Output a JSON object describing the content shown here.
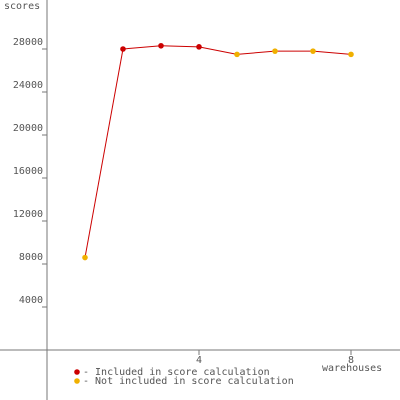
{
  "chart_data": {
    "type": "line",
    "y_label": "scores",
    "x_label": "warehouses",
    "x": [
      1,
      2,
      3,
      4,
      5,
      6,
      7,
      8
    ],
    "series": [
      {
        "name": "- Included in score calculation",
        "color": "#cc0000",
        "values": [
          null,
          28000,
          28300,
          28200,
          null,
          null,
          null,
          null
        ]
      },
      {
        "name": "- Not included in score calculation",
        "color": "#f0b000",
        "values": [
          8600,
          null,
          null,
          null,
          27500,
          27800,
          27800,
          27500
        ]
      }
    ],
    "line_color": "#cc0000",
    "xlim": [
      -1,
      9
    ],
    "xticks": [
      4,
      8
    ],
    "ylim": [
      -4000,
      32000
    ],
    "yticks": [
      4000,
      8000,
      12000,
      16000,
      20000,
      24000,
      28000
    ]
  }
}
